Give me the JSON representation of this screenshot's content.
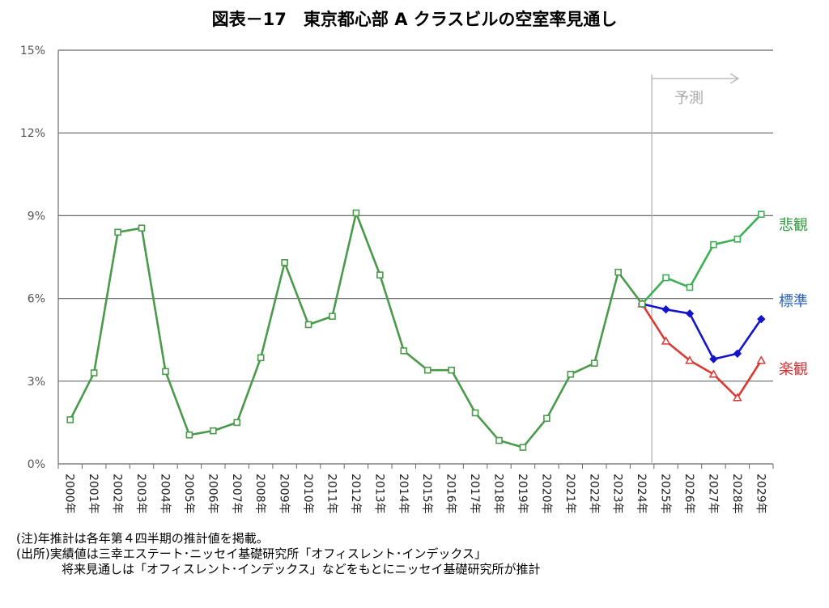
{
  "chart_data": {
    "type": "line",
    "title": "図表－17　東京都心部 A クラスビルの空室率見通し",
    "categories": [
      "2000年",
      "2001年",
      "2002年",
      "2003年",
      "2004年",
      "2005年",
      "2006年",
      "2007年",
      "2008年",
      "2009年",
      "2010年",
      "2011年",
      "2012年",
      "2013年",
      "2014年",
      "2015年",
      "2016年",
      "2017年",
      "2018年",
      "2019年",
      "2020年",
      "2021年",
      "2022年",
      "2023年",
      "2024年",
      "2025年",
      "2026年",
      "2027年",
      "2028年",
      "2029年"
    ],
    "ylim": [
      0,
      15
    ],
    "yticks": [
      0,
      3,
      6,
      9,
      12,
      15
    ],
    "ytick_labels": [
      "0%",
      "3%",
      "6%",
      "9%",
      "12%",
      "15%"
    ],
    "grid": true,
    "forecast_label": "予測",
    "forecast_start_category": "2024年",
    "series": [
      {
        "name": "実績",
        "color": "#4b9a4b",
        "marker": "square",
        "values": [
          1.6,
          3.3,
          8.4,
          8.55,
          3.35,
          1.05,
          1.2,
          1.5,
          3.85,
          7.3,
          5.05,
          5.35,
          9.1,
          6.85,
          4.1,
          3.4,
          3.4,
          1.85,
          0.85,
          0.6,
          1.65,
          3.25,
          3.65,
          6.95,
          5.8,
          null,
          null,
          null,
          null,
          null
        ]
      },
      {
        "name": "悲観",
        "color": "#3cb054",
        "marker": "square",
        "label_color": "#2e9c3c",
        "values": [
          null,
          null,
          null,
          null,
          null,
          null,
          null,
          null,
          null,
          null,
          null,
          null,
          null,
          null,
          null,
          null,
          null,
          null,
          null,
          null,
          null,
          null,
          null,
          null,
          5.8,
          6.75,
          6.4,
          7.95,
          8.15,
          9.05
        ]
      },
      {
        "name": "標準",
        "color": "#1414c8",
        "marker": "diamond",
        "label_color": "#2a62b8",
        "values": [
          null,
          null,
          null,
          null,
          null,
          null,
          null,
          null,
          null,
          null,
          null,
          null,
          null,
          null,
          null,
          null,
          null,
          null,
          null,
          null,
          null,
          null,
          null,
          null,
          5.8,
          5.6,
          5.45,
          3.8,
          4.0,
          5.25
        ]
      },
      {
        "name": "楽観",
        "color": "#d83a34",
        "marker": "triangle",
        "label_color": "#d03030",
        "values": [
          null,
          null,
          null,
          null,
          null,
          null,
          null,
          null,
          null,
          null,
          null,
          null,
          null,
          null,
          null,
          null,
          null,
          null,
          null,
          null,
          null,
          null,
          null,
          null,
          5.8,
          4.45,
          3.75,
          3.25,
          2.4,
          3.75
        ]
      }
    ]
  },
  "notes": {
    "line1": "(注)年推計は各年第４四半期の推計値を掲載。",
    "line2": "(出所)実績値は三幸エステート･ニッセイ基礎研究所「オフィスレント･インデックス」",
    "line3": "将来見通しは「オフィスレント･インデックス」などをもとにニッセイ基礎研究所が推計"
  }
}
